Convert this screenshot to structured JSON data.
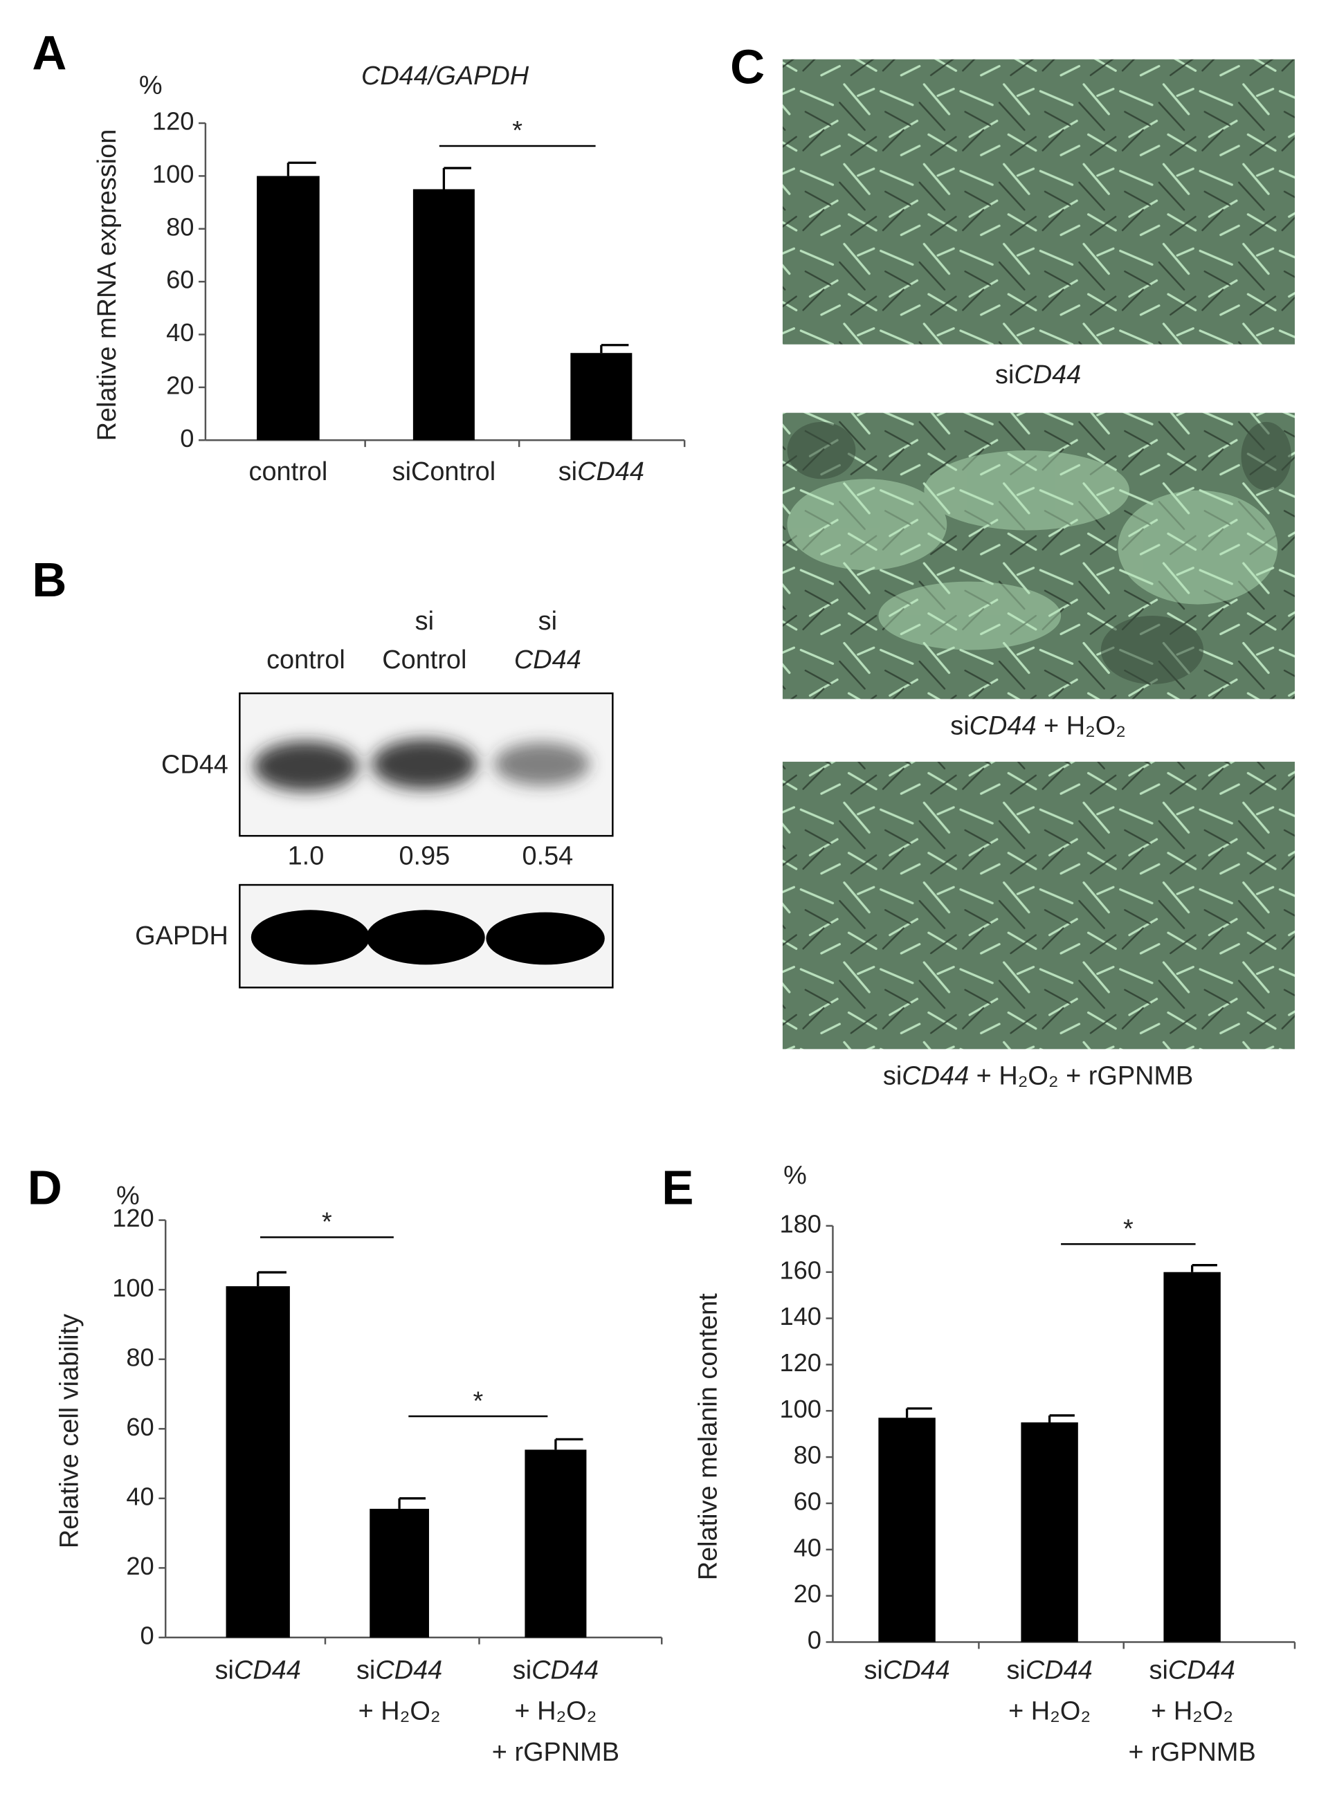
{
  "chart_data": [
    {
      "type": "bar",
      "panel_label": "A",
      "title": "CD44/GAPDH",
      "y_unit": "%",
      "ylabel": "Relative  mRNA expression",
      "categories": [
        [
          "control"
        ],
        [
          "siControl"
        ],
        [
          "siCD44"
        ]
      ],
      "values": [
        100,
        95,
        33
      ],
      "errors": [
        5,
        8,
        3
      ],
      "color": "#000000",
      "ylim": [
        0,
        120
      ],
      "yticks": [
        0,
        20,
        40,
        60,
        80,
        100,
        120
      ],
      "annotations": [
        "*"
      ]
    },
    {
      "type": "bar",
      "panel_label": "D",
      "y_unit": "%",
      "ylabel": "Relative  cell viability",
      "categories": [
        [
          "siCD44"
        ],
        [
          "siCD44",
          "+ H₂O₂"
        ],
        [
          "siCD44",
          "+ H₂O₂",
          "+ rGPNMB"
        ]
      ],
      "values": [
        101,
        37,
        54
      ],
      "errors": [
        4,
        3,
        3
      ],
      "color": "#000000",
      "ylim": [
        0,
        120
      ],
      "yticks": [
        0,
        20,
        40,
        60,
        80,
        100,
        120
      ],
      "annotations": [
        "*",
        "*"
      ]
    },
    {
      "type": "bar",
      "panel_label": "E",
      "y_unit": "%",
      "ylabel": "Relative  melanin content",
      "categories": [
        [
          "siCD44"
        ],
        [
          "siCD44",
          "+ H₂O₂"
        ],
        [
          "siCD44",
          "+ H₂O₂",
          "+ rGPNMB"
        ]
      ],
      "values": [
        97,
        95,
        160
      ],
      "errors": [
        4,
        3,
        3
      ],
      "color": "#000000",
      "ylim": [
        0,
        180
      ],
      "yticks": [
        0,
        20,
        40,
        60,
        80,
        100,
        120,
        140,
        160,
        180
      ],
      "annotations": [
        "*"
      ]
    }
  ],
  "blot": {
    "panel_label": "B",
    "columns": [
      [
        "control"
      ],
      [
        "si",
        "Control"
      ],
      [
        "si",
        "CD44"
      ]
    ],
    "rows": [
      "CD44",
      "GAPDH"
    ],
    "quantification": [
      "1.0",
      "0.95",
      "0.54"
    ]
  },
  "micrographs": {
    "panel_label": "C",
    "captions": [
      "siCD44",
      "siCD44 + H₂O₂",
      "siCD44 + H₂O₂ + rGPNMB"
    ]
  }
}
